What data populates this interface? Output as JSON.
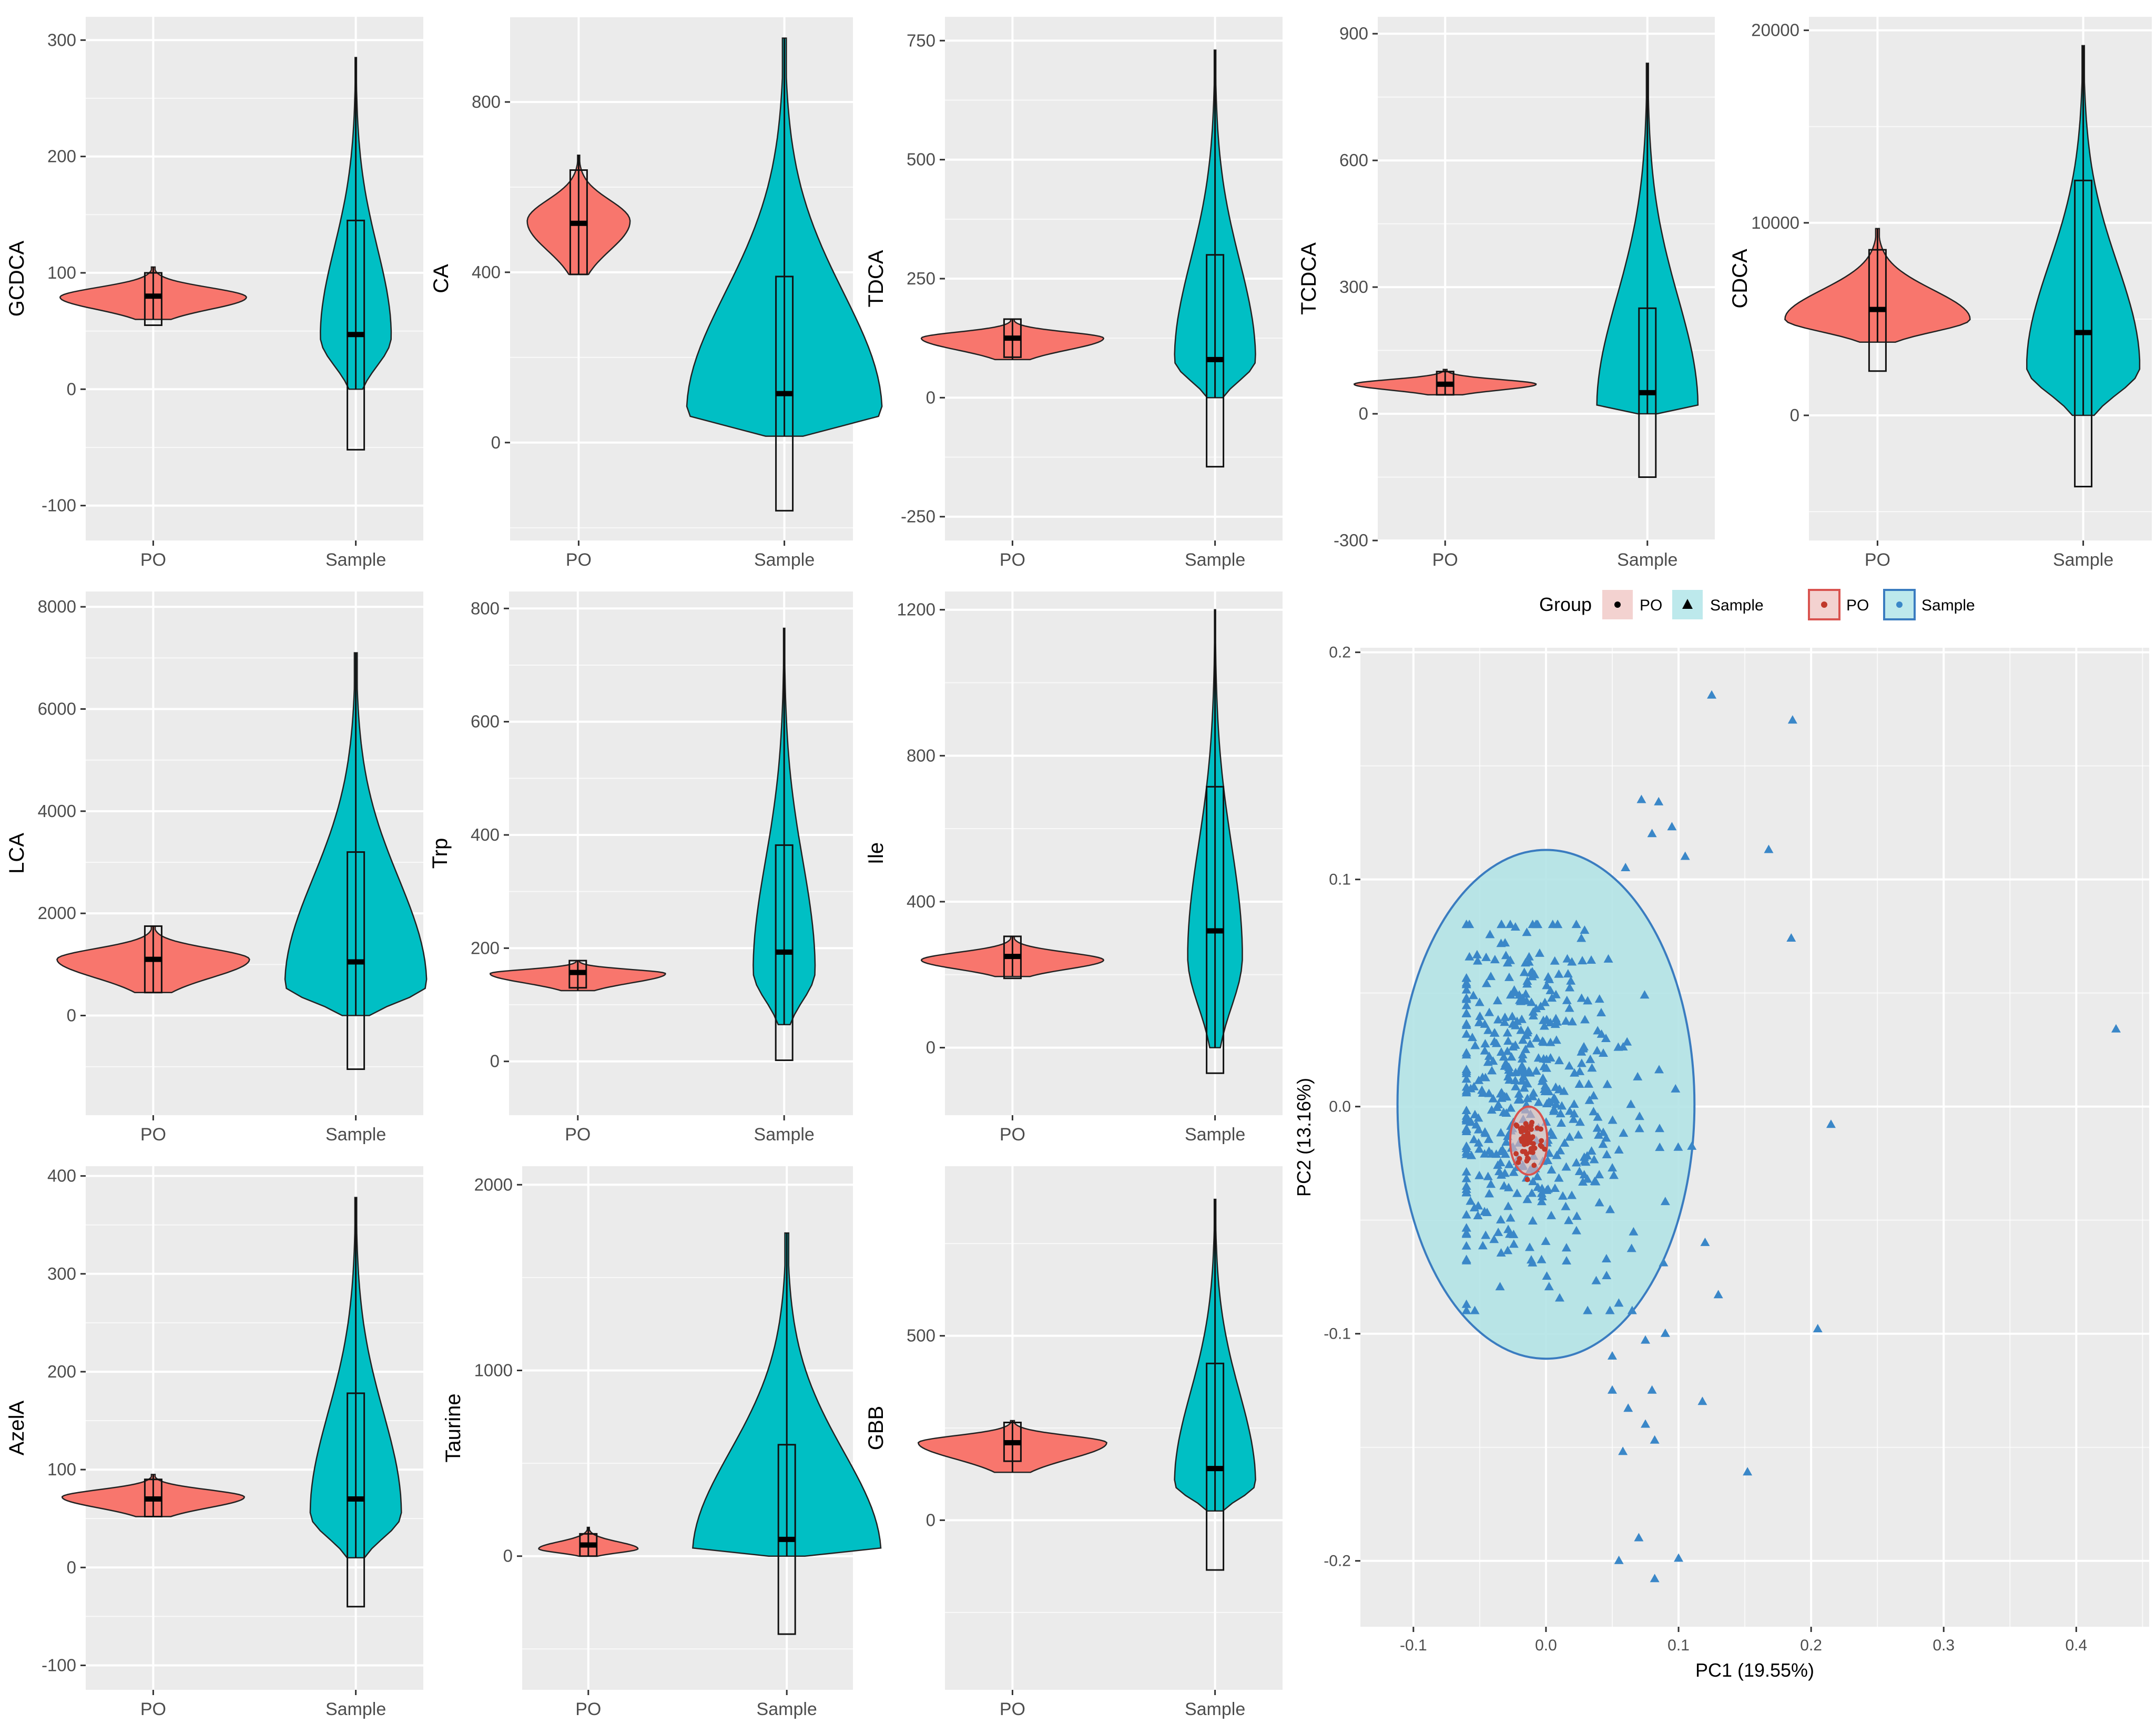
{
  "colors": {
    "panel_bg": "#ebebeb",
    "grid": "#ffffff",
    "po": "#f8766d",
    "sample": "#00bfc4",
    "tick_text": "#4d4d4d",
    "axis_title": "#000000",
    "scatter_points": "#3a87c8",
    "sample_ellipse_fill": "#b3e3e6",
    "sample_ellipse_stroke": "#3a7cc0",
    "po_ellipse_stroke": "#d9534f"
  },
  "chart_data": [
    {
      "type": "violin",
      "ylabel": "GCDCA",
      "categories": [
        "PO",
        "Sample"
      ],
      "ylim": [
        -130,
        320
      ],
      "yticks": [
        -100,
        0,
        100,
        200,
        300
      ],
      "violins": [
        {
          "min": 60,
          "max": 105,
          "peak": 79,
          "width": 0.92
        },
        {
          "min": 0,
          "max": 285,
          "peak": 45,
          "width": 0.35
        }
      ],
      "boxes": [
        {
          "low": 55,
          "high": 100,
          "median": 80
        },
        {
          "low": -52,
          "high": 145,
          "median": 47
        }
      ]
    },
    {
      "type": "violin",
      "ylabel": "CA",
      "categories": [
        "PO",
        "Sample"
      ],
      "ylim": [
        -230,
        1000
      ],
      "yticks": [
        0,
        400,
        800
      ],
      "violins": [
        {
          "min": 395,
          "max": 675,
          "peak": 520,
          "width": 0.5
        },
        {
          "min": 15,
          "max": 950,
          "peak": 70,
          "width": 0.95
        }
      ],
      "boxes": [
        {
          "low": 395,
          "high": 640,
          "median": 515
        },
        {
          "low": -160,
          "high": 390,
          "median": 115
        }
      ]
    },
    {
      "type": "violin",
      "ylabel": "TDCA",
      "categories": [
        "PO",
        "Sample"
      ],
      "ylim": [
        -300,
        800
      ],
      "yticks": [
        -250,
        0,
        250,
        500,
        750
      ],
      "violins": [
        {
          "min": 80,
          "max": 165,
          "peak": 125,
          "width": 0.9
        },
        {
          "min": 0,
          "max": 730,
          "peak": 80,
          "width": 0.4
        }
      ],
      "boxes": [
        {
          "low": 85,
          "high": 165,
          "median": 125
        },
        {
          "low": -145,
          "high": 300,
          "median": 80
        }
      ]
    },
    {
      "type": "violin",
      "ylabel": "TCDCA",
      "categories": [
        "PO",
        "Sample"
      ],
      "ylim": [
        -300,
        940
      ],
      "yticks": [
        -300,
        0,
        300,
        600,
        900
      ],
      "violins": [
        {
          "min": 45,
          "max": 105,
          "peak": 70,
          "width": 0.9
        },
        {
          "min": 0,
          "max": 830,
          "peak": 15,
          "width": 0.5
        }
      ],
      "boxes": [
        {
          "low": 45,
          "high": 100,
          "median": 70
        },
        {
          "low": -150,
          "high": 250,
          "median": 50
        }
      ]
    },
    {
      "type": "violin",
      "ylabel": "CDCA",
      "categories": [
        "PO",
        "Sample"
      ],
      "ylim": [
        -6500,
        20700
      ],
      "yticks": [
        0,
        10000,
        20000
      ],
      "violins": [
        {
          "min": 3800,
          "max": 9700,
          "peak": 5000,
          "width": 0.9
        },
        {
          "min": 0,
          "max": 19200,
          "peak": 2500,
          "width": 0.55
        }
      ],
      "boxes": [
        {
          "low": 2300,
          "high": 8600,
          "median": 5500
        },
        {
          "low": -3700,
          "high": 12200,
          "median": 4300
        }
      ]
    },
    {
      "type": "violin",
      "ylabel": "LCA",
      "categories": [
        "PO",
        "Sample"
      ],
      "ylim": [
        -1950,
        8300
      ],
      "yticks": [
        0,
        2000,
        4000,
        6000,
        8000
      ],
      "violins": [
        {
          "min": 450,
          "max": 1750,
          "peak": 1100,
          "width": 0.95
        },
        {
          "min": 0,
          "max": 7100,
          "peak": 600,
          "width": 0.7
        }
      ],
      "boxes": [
        {
          "low": 450,
          "high": 1750,
          "median": 1100
        },
        {
          "low": -1050,
          "high": 3200,
          "median": 1050
        }
      ]
    },
    {
      "type": "violin",
      "ylabel": "Trp",
      "categories": [
        "PO",
        "Sample"
      ],
      "ylim": [
        -95,
        830
      ],
      "yticks": [
        0,
        200,
        400,
        600,
        800
      ],
      "violins": [
        {
          "min": 125,
          "max": 178,
          "peak": 155,
          "width": 0.85
        },
        {
          "min": 65,
          "max": 765,
          "peak": 160,
          "width": 0.3
        }
      ],
      "boxes": [
        {
          "low": 130,
          "high": 178,
          "median": 157
        },
        {
          "low": 2,
          "high": 382,
          "median": 193
        }
      ]
    },
    {
      "type": "violin",
      "ylabel": "Ile",
      "categories": [
        "PO",
        "Sample"
      ],
      "ylim": [
        -185,
        1250
      ],
      "yticks": [
        0,
        400,
        800,
        1200
      ],
      "violins": [
        {
          "min": 195,
          "max": 305,
          "peak": 240,
          "width": 0.9
        },
        {
          "min": 0,
          "max": 1200,
          "peak": 250,
          "width": 0.27
        }
      ],
      "boxes": [
        {
          "low": 190,
          "high": 305,
          "median": 250
        },
        {
          "low": -70,
          "high": 715,
          "median": 320
        }
      ]
    },
    {
      "type": "violin",
      "ylabel": "AzelA",
      "categories": [
        "PO",
        "Sample"
      ],
      "ylim": [
        -125,
        410
      ],
      "yticks": [
        -100,
        0,
        100,
        200,
        300,
        400
      ],
      "violins": [
        {
          "min": 52,
          "max": 95,
          "peak": 72,
          "width": 0.9
        },
        {
          "min": 10,
          "max": 378,
          "peak": 55,
          "width": 0.45
        }
      ],
      "boxes": [
        {
          "low": 52,
          "high": 90,
          "median": 70
        },
        {
          "low": -40,
          "high": 178,
          "median": 70
        }
      ]
    },
    {
      "type": "violin",
      "ylabel": "Taurine",
      "categories": [
        "PO",
        "Sample"
      ],
      "ylim": [
        -720,
        2100
      ],
      "yticks": [
        0,
        1000,
        2000
      ],
      "violins": [
        {
          "min": 0,
          "max": 155,
          "peak": 40,
          "width": 0.5
        },
        {
          "min": 0,
          "max": 1740,
          "peak": 5,
          "width": 0.95
        }
      ],
      "boxes": [
        {
          "low": 0,
          "high": 120,
          "median": 60
        },
        {
          "low": -420,
          "high": 600,
          "median": 90
        }
      ]
    },
    {
      "type": "violin",
      "ylabel": "GBB",
      "categories": [
        "PO",
        "Sample"
      ],
      "ylim": [
        -460,
        960
      ],
      "yticks": [
        0,
        500
      ],
      "violins": [
        {
          "min": 130,
          "max": 270,
          "peak": 210,
          "width": 0.93
        },
        {
          "min": 25,
          "max": 870,
          "peak": 100,
          "width": 0.4
        }
      ],
      "boxes": [
        {
          "low": 160,
          "high": 265,
          "median": 210
        },
        {
          "low": -135,
          "high": 425,
          "median": 140
        }
      ]
    },
    {
      "type": "scatter",
      "xlabel": "PC1 (19.55%)",
      "ylabel": "PC2 (13.16%)",
      "xlim": [
        -0.14,
        0.455
      ],
      "ylim": [
        -0.229,
        0.202
      ],
      "xticks": [
        -0.1,
        0.0,
        0.1,
        0.2,
        0.3,
        0.4
      ],
      "yticks": [
        -0.2,
        -0.1,
        0.0,
        0.1,
        0.2
      ],
      "legend": {
        "title": "Group",
        "labels": [
          "PO",
          "Sample",
          "PO",
          "Sample"
        ]
      },
      "ellipses": [
        {
          "group": "Sample",
          "cx": 0.0,
          "cy": 0.001,
          "rx": 0.112,
          "ry": 0.112
        },
        {
          "group": "PO",
          "cx": -0.013,
          "cy": -0.015,
          "rx": 0.014,
          "ry": 0.015
        }
      ],
      "outliers": [
        [
          0.125,
          0.181
        ],
        [
          0.186,
          0.17
        ],
        [
          0.168,
          0.113
        ],
        [
          0.185,
          0.074
        ],
        [
          0.43,
          0.034
        ],
        [
          0.215,
          -0.008
        ],
        [
          0.12,
          -0.06
        ],
        [
          0.13,
          -0.083
        ],
        [
          0.205,
          -0.098
        ],
        [
          0.118,
          -0.13
        ],
        [
          0.152,
          -0.161
        ],
        [
          0.055,
          -0.2
        ],
        [
          0.07,
          -0.19
        ],
        [
          0.1,
          -0.199
        ],
        [
          0.082,
          -0.208
        ],
        [
          0.05,
          -0.11
        ],
        [
          0.08,
          -0.125
        ],
        [
          0.062,
          -0.133
        ],
        [
          0.058,
          -0.152
        ],
        [
          0.075,
          -0.14
        ],
        [
          0.082,
          -0.147
        ],
        [
          0.05,
          -0.125
        ],
        [
          0.09,
          -0.1
        ],
        [
          0.075,
          -0.103
        ],
        [
          0.065,
          -0.09
        ],
        [
          0.09,
          -0.042
        ],
        [
          0.072,
          0.135
        ],
        [
          0.085,
          0.134
        ],
        [
          0.095,
          0.123
        ],
        [
          0.08,
          0.12
        ],
        [
          0.105,
          0.11
        ],
        [
          0.06,
          0.105
        ]
      ],
      "cluster": {
        "count": 480,
        "center": [
          -0.02,
          0.005
        ],
        "spread": [
          0.04,
          0.04
        ],
        "po_count": 60
      }
    }
  ]
}
